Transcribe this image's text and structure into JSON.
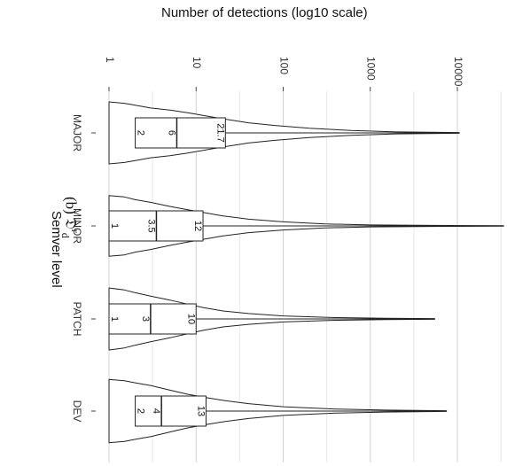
{
  "caption": {
    "prefix": "(b) ",
    "symbol": "𝔇",
    "sup": "r",
    "sub": "d"
  },
  "chart_data": {
    "type": "violin",
    "title": "Number of detections (log10 scale)",
    "xlabel": "Semver level",
    "ylabel": "Number of detections (log10 scale)",
    "scale": "log10",
    "ylim": [
      1,
      40000
    ],
    "ticks": [
      {
        "value": 1,
        "label": "1"
      },
      {
        "value": 10,
        "label": "10"
      },
      {
        "value": 100,
        "label": "100"
      },
      {
        "value": 1000,
        "label": "1000"
      },
      {
        "value": 10000,
        "label": "10000"
      }
    ],
    "grid": true,
    "categories": [
      "MAJOR",
      "MINOR",
      "PATCH",
      "DEV"
    ],
    "groups": [
      {
        "name": "MAJOR",
        "q1": 2,
        "median": 6,
        "q3": 21.7,
        "min": 1,
        "max": 10500,
        "q1_label": "2",
        "median_label": "6",
        "q3_label": "21.7",
        "density": [
          [
            1,
            0.92
          ],
          [
            1.5,
            0.88
          ],
          [
            2,
            0.82
          ],
          [
            3,
            0.74
          ],
          [
            5,
            0.68
          ],
          [
            8,
            0.6
          ],
          [
            12,
            0.52
          ],
          [
            20,
            0.42
          ],
          [
            40,
            0.3
          ],
          [
            80,
            0.22
          ],
          [
            200,
            0.14
          ],
          [
            600,
            0.07
          ],
          [
            2000,
            0.03
          ],
          [
            10500,
            0.01
          ]
        ]
      },
      {
        "name": "MINOR",
        "q1": 1,
        "median": 3.5,
        "q3": 12,
        "min": 1,
        "max": 34000,
        "q1_label": "1",
        "median_label": "3.5",
        "q3_label": "12",
        "density": [
          [
            1,
            0.9
          ],
          [
            1.5,
            0.86
          ],
          [
            2,
            0.78
          ],
          [
            3,
            0.7
          ],
          [
            5,
            0.58
          ],
          [
            8,
            0.48
          ],
          [
            12,
            0.4
          ],
          [
            20,
            0.3
          ],
          [
            40,
            0.2
          ],
          [
            100,
            0.12
          ],
          [
            300,
            0.06
          ],
          [
            1000,
            0.03
          ],
          [
            5000,
            0.015
          ],
          [
            34000,
            0.005
          ]
        ]
      },
      {
        "name": "PATCH",
        "q1": 1,
        "median": 3,
        "q3": 10,
        "min": 1,
        "max": 5500,
        "q1_label": "1",
        "median_label": "3",
        "q3_label": "10",
        "density": [
          [
            1,
            0.92
          ],
          [
            1.5,
            0.86
          ],
          [
            2,
            0.78
          ],
          [
            3,
            0.68
          ],
          [
            5,
            0.56
          ],
          [
            8,
            0.44
          ],
          [
            12,
            0.34
          ],
          [
            20,
            0.24
          ],
          [
            40,
            0.16
          ],
          [
            100,
            0.09
          ],
          [
            400,
            0.04
          ],
          [
            1500,
            0.02
          ],
          [
            5500,
            0.01
          ]
        ]
      },
      {
        "name": "DEV",
        "q1": 2,
        "median": 4,
        "q3": 13,
        "min": 1,
        "max": 7500,
        "q1_label": "2",
        "median_label": "4",
        "q3_label": "13",
        "density": [
          [
            1,
            0.94
          ],
          [
            1.5,
            0.9
          ],
          [
            2,
            0.84
          ],
          [
            3,
            0.76
          ],
          [
            5,
            0.62
          ],
          [
            8,
            0.5
          ],
          [
            13,
            0.4
          ],
          [
            20,
            0.32
          ],
          [
            40,
            0.22
          ],
          [
            100,
            0.13
          ],
          [
            400,
            0.06
          ],
          [
            1500,
            0.03
          ],
          [
            7500,
            0.01
          ]
        ]
      }
    ]
  }
}
